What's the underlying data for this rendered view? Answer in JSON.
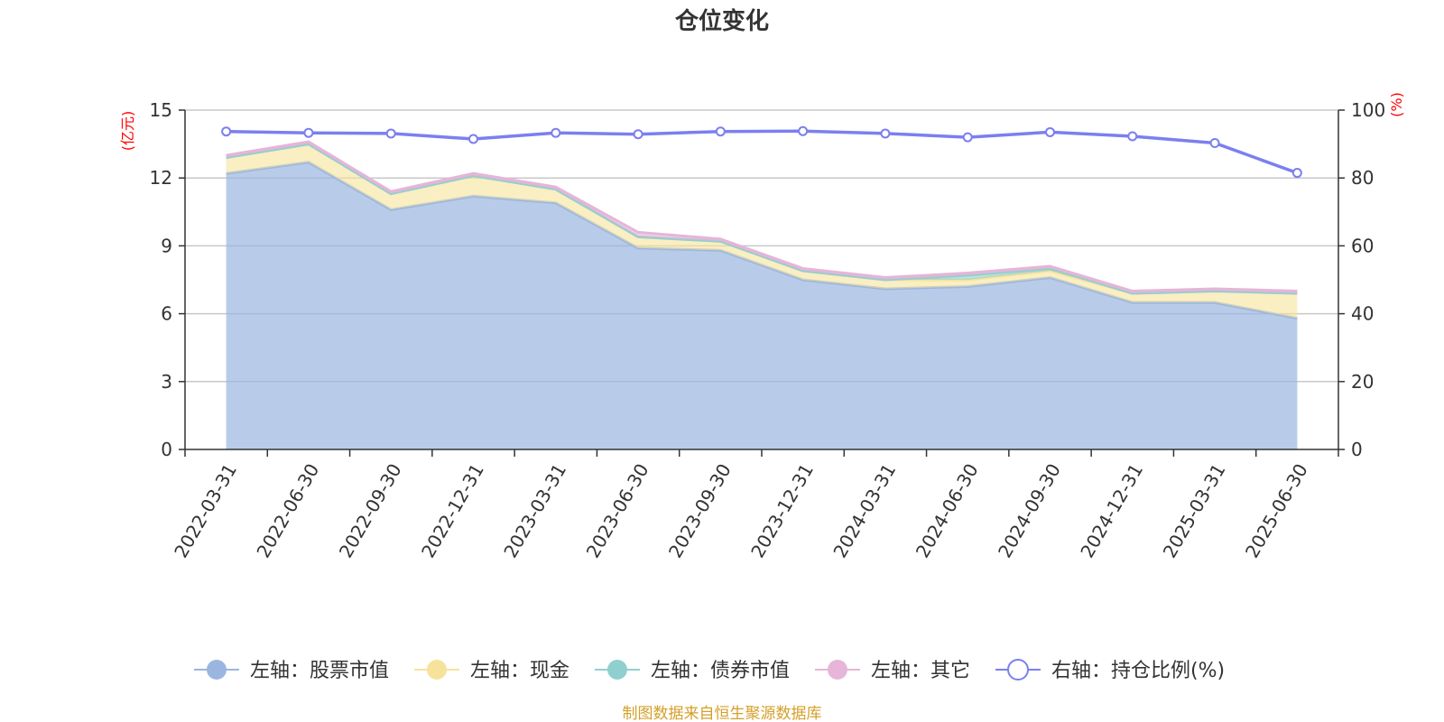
{
  "chart_data": {
    "type": "area",
    "title": "仓位变化",
    "categories": [
      "2022-03-31",
      "2022-06-30",
      "2022-09-30",
      "2022-12-31",
      "2023-03-31",
      "2023-06-30",
      "2023-09-30",
      "2023-12-31",
      "2024-03-31",
      "2024-06-30",
      "2024-09-30",
      "2024-12-31",
      "2025-03-31",
      "2025-06-30"
    ],
    "left_axis": {
      "unit": "(亿元)",
      "ylim": [
        0,
        15
      ],
      "ticks": [
        0,
        3,
        6,
        9,
        12,
        15
      ]
    },
    "right_axis": {
      "unit": "(%)",
      "ylim": [
        0,
        100
      ],
      "ticks": [
        0,
        20,
        40,
        60,
        80,
        100
      ]
    },
    "series": [
      {
        "name": "左轴：股票市值",
        "axis": "left",
        "kind": "stacked-area",
        "color": "#9ab6e0",
        "values": [
          12.2,
          12.7,
          10.6,
          11.2,
          10.9,
          8.9,
          8.8,
          7.5,
          7.1,
          7.2,
          7.6,
          6.5,
          6.5,
          5.8
        ]
      },
      {
        "name": "左轴：现金",
        "axis": "left",
        "kind": "stacked-area",
        "color": "#f7e29b",
        "values": [
          0.7,
          0.8,
          0.7,
          0.9,
          0.6,
          0.5,
          0.4,
          0.4,
          0.4,
          0.3,
          0.3,
          0.4,
          0.5,
          1.1
        ]
      },
      {
        "name": "左轴：债券市值",
        "axis": "left",
        "kind": "stacked-area",
        "color": "#8fd0cf",
        "values": [
          0,
          0,
          0,
          0,
          0,
          0,
          0,
          0,
          0,
          0.2,
          0.1,
          0,
          0,
          0
        ]
      },
      {
        "name": "左轴：其它",
        "axis": "left",
        "kind": "stacked-area",
        "color": "#e6b5d8",
        "values": [
          0.1,
          0.1,
          0.1,
          0.1,
          0.1,
          0.2,
          0.1,
          0.1,
          0.1,
          0.1,
          0.1,
          0.1,
          0.1,
          0.1
        ]
      },
      {
        "name": "右轴：持仓比例(%)",
        "axis": "right",
        "kind": "line",
        "color": "#7b7ff0",
        "values": [
          93.7,
          93.3,
          93.1,
          91.5,
          93.3,
          92.9,
          93.7,
          93.8,
          93.1,
          92.0,
          93.5,
          92.3,
          90.3,
          81.5
        ]
      }
    ],
    "grid": true,
    "legend_position": "bottom"
  },
  "footer": {
    "source": "制图数据来自恒生聚源数据库"
  }
}
